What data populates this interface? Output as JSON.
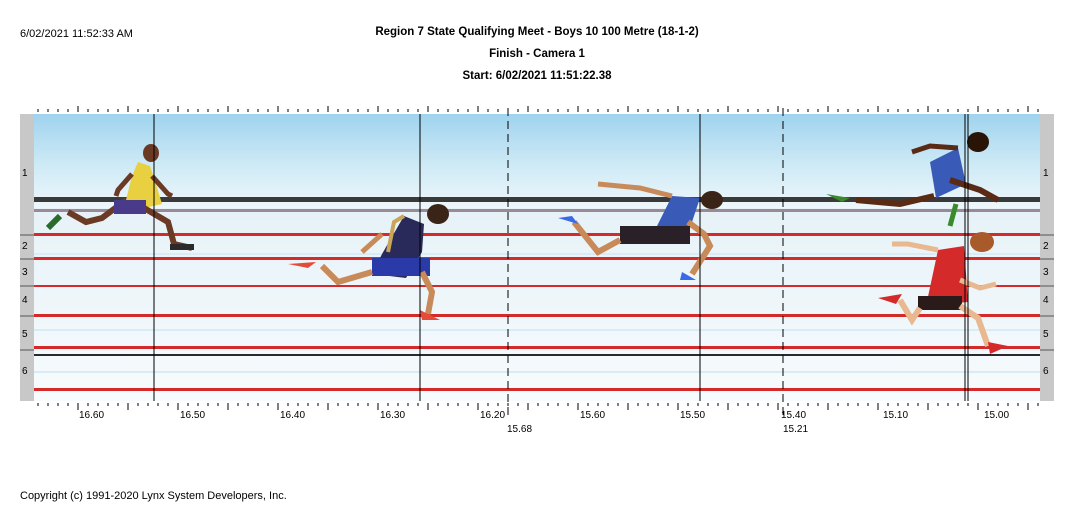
{
  "timestamp": "6/02/2021 11:52:33 AM",
  "header": {
    "title": "Region 7 State Qualifying Meet - Boys 10 100 Metre (18-1-2)",
    "camera": "Finish - Camera 1",
    "start": "Start: 6/02/2021 11:51:22.38"
  },
  "lanes": {
    "left": [
      "1",
      "2",
      "3",
      "4",
      "5",
      "6"
    ],
    "right": [
      "1",
      "2",
      "3",
      "4",
      "5",
      "6"
    ]
  },
  "time_scale": {
    "labels": [
      "16.60",
      "16.50",
      "16.40",
      "16.30",
      "16.20",
      "15.60",
      "15.50",
      "15.40",
      "15.10",
      "15.00"
    ]
  },
  "splits": [
    "15.68",
    "15.21"
  ],
  "colors": {
    "track_red": "#d42a2a",
    "sky_blue": "#bfe3f3",
    "lane_gray": "#c8c8c8"
  },
  "footer": "Copyright (c) 1991-2020 Lynx System Developers, Inc."
}
